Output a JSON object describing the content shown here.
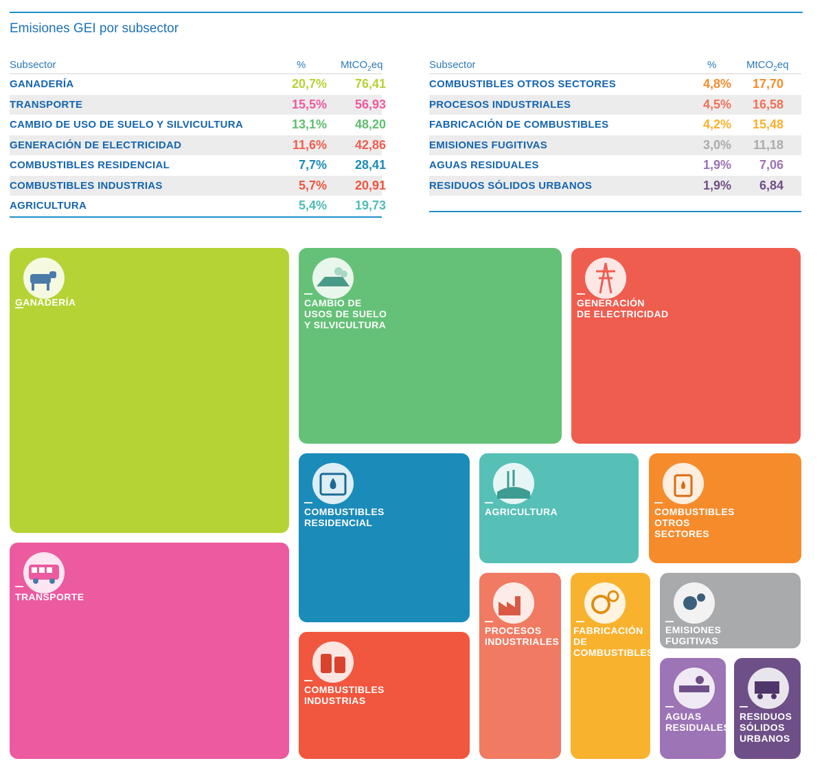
{
  "title": "Emisiones GEI por subsector",
  "table_headers": {
    "subsector": "Subsector",
    "pct": "%",
    "unit_prefix": "MtCO",
    "unit_sub": "2",
    "unit_suffix": "eq"
  },
  "chart_data": {
    "type": "table",
    "title": "Emisiones GEI por subsector",
    "columns": [
      "Subsector",
      "%",
      "MtCO2eq"
    ],
    "rows": [
      {
        "subsector": "GANADERÍA",
        "pct": "20,7%",
        "value": "76,41",
        "color": "#b5d334"
      },
      {
        "subsector": "TRANSPORTE",
        "pct": "15,5%",
        "value": "56,93",
        "color": "#ec5aa0"
      },
      {
        "subsector": "CAMBIO DE USO DE SUELO Y SILVICULTURA",
        "pct": "13,1%",
        "value": "48,20",
        "color": "#5fbf6e"
      },
      {
        "subsector": "GENERACIÓN DE ELECTRICIDAD",
        "pct": "11,6%",
        "value": "42,86",
        "color": "#ef5d4f"
      },
      {
        "subsector": "COMBUSTIBLES RESIDENCIAL",
        "pct": "7,7%",
        "value": "28,41",
        "color": "#1b8bba"
      },
      {
        "subsector": "COMBUSTIBLES INDUSTRIAS",
        "pct": "5,7%",
        "value": "20,91",
        "color": "#f0543d"
      },
      {
        "subsector": "AGRICULTURA",
        "pct": "5,4%",
        "value": "19,73",
        "color": "#4ebdb4"
      },
      {
        "subsector": "COMBUSTIBLES OTROS SECTORES",
        "pct": "4,8%",
        "value": "17,70",
        "color": "#f68b2c"
      },
      {
        "subsector": "PROCESOS INDUSTRIALES",
        "pct": "4,5%",
        "value": "16,58",
        "color": "#f07057"
      },
      {
        "subsector": "FABRICACIÓN DE COMBUSTIBLES",
        "pct": "4,2%",
        "value": "15,48",
        "color": "#f9b02a"
      },
      {
        "subsector": "EMISIONES FUGITIVAS",
        "pct": "3,0%",
        "value": "11,18",
        "color": "#a9abad"
      },
      {
        "subsector": "AGUAS RESIDUALES",
        "pct": "1,9%",
        "value": "7,06",
        "color": "#9b72b4"
      },
      {
        "subsector": "RESIDUOS SÓLIDOS URBANOS",
        "pct": "1,9%",
        "value": "6,84",
        "color": "#6f4e86"
      }
    ]
  },
  "treemap": {
    "ganaderia": {
      "label": "GANADERÍA",
      "color": "#b5d334",
      "icon": "livestock-icon"
    },
    "transporte": {
      "label": "TRANSPORTE",
      "color": "#ec5aa0",
      "icon": "bus-icon"
    },
    "cambio": {
      "label": "CAMBIO DE\nUSOS DE SUELO\nY SILVICULTURA",
      "color": "#65c178",
      "icon": "land-use-icon"
    },
    "generacion": {
      "label": "GENERACIÓN\nDE ELECTRICIDAD",
      "color": "#ef5d4f",
      "icon": "power-tower-icon"
    },
    "residencial": {
      "label": "COMBUSTIBLES\nRESIDENCIAL",
      "color": "#1b8bba",
      "icon": "house-drop-icon"
    },
    "agricultura": {
      "label": "AGRICULTURA",
      "color": "#56c0b7",
      "icon": "wheat-field-icon"
    },
    "otros": {
      "label": "COMBUSTIBLES\nOTROS\nSECTORES",
      "color": "#f68b2c",
      "icon": "fuel-can-icon"
    },
    "industrias": {
      "label": "COMBUSTIBLES\nINDUSTRIAS",
      "color": "#f0573e",
      "icon": "barrels-icon"
    },
    "procesos": {
      "label": "PROCESOS\nINDUSTRIALES",
      "color": "#f07a62",
      "icon": "factory-icon"
    },
    "fabricacion": {
      "label": "FABRICACIÓN\nDE\nCOMBUSTIBLES",
      "color": "#f9b22e",
      "icon": "gears-drop-icon"
    },
    "fugitivas": {
      "label": "EMISIONES\nFUGITIVAS",
      "color": "#a8aaac",
      "icon": "bubbles-icon"
    },
    "aguas": {
      "label": "AGUAS\nRESIDUALES",
      "color": "#9d74b6",
      "icon": "pipe-icon"
    },
    "residuos": {
      "label": "RESIDUOS\nSÓLIDOS\nURBANOS",
      "color": "#6f4f88",
      "icon": "garbage-truck-icon"
    }
  }
}
